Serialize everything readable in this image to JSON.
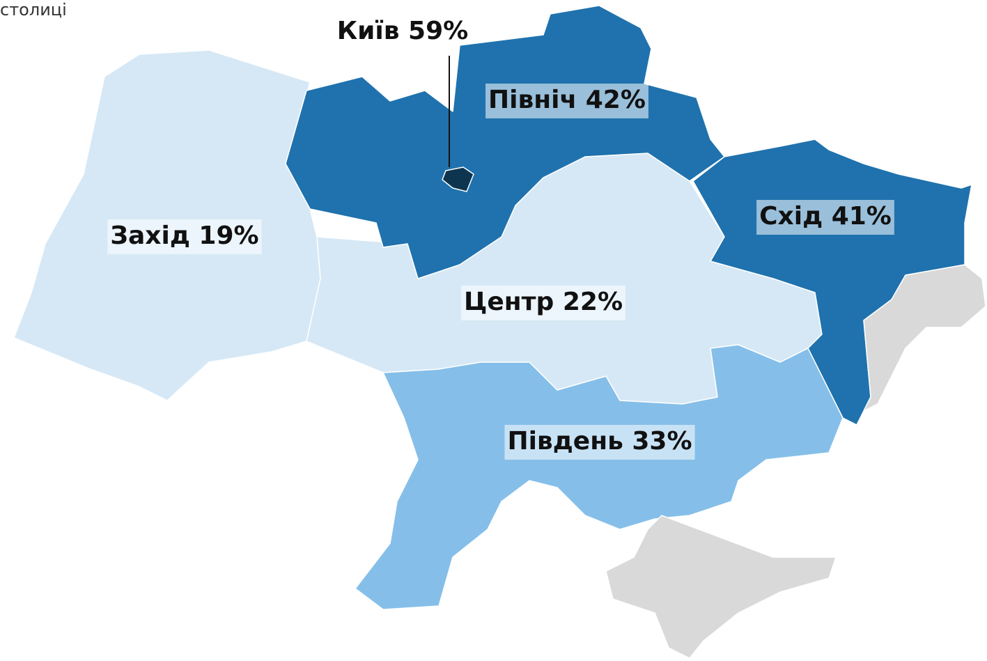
{
  "caption": "столиці",
  "regions": [
    {
      "label": "Київ 59%",
      "value": 59,
      "color": "#0d3550"
    },
    {
      "label": "Північ 42%",
      "value": 42,
      "color": "#1f72ad"
    },
    {
      "label": "Схід 41%",
      "value": 41,
      "color": "#1f72ad"
    },
    {
      "label": "Південь 33%",
      "value": 33,
      "color": "#85bfe9"
    },
    {
      "label": "Центр 22%",
      "value": 22,
      "color": "#d6e8f5"
    },
    {
      "label": "Захід 19%",
      "value": 19,
      "color": "#d6e8f5"
    }
  ],
  "occupied_color": "#d9d9d9"
}
